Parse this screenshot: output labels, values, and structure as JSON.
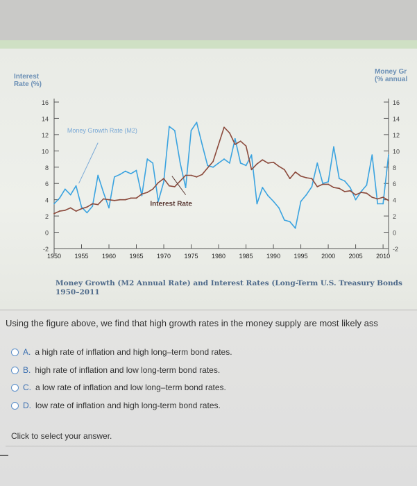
{
  "chart_data": {
    "type": "line",
    "left_axis_title": [
      "Interest",
      "Rate (%)"
    ],
    "right_axis_title": [
      "Money Gr",
      "(% annual"
    ],
    "left_ticks": [
      16,
      14,
      12,
      10,
      8,
      6,
      4,
      2,
      0,
      -2
    ],
    "right_ticks": [
      16,
      14,
      12,
      10,
      8,
      6,
      4,
      2,
      0,
      -2
    ],
    "ylim": [
      -2,
      16
    ],
    "x_ticks": [
      1950,
      1955,
      1960,
      1965,
      1970,
      1975,
      1980,
      1985,
      1990,
      1995,
      2000,
      2005,
      2010
    ],
    "xlim": [
      1950,
      2011
    ],
    "annotations": [
      {
        "text": "Money Growth Rate (M2)",
        "x": 1951.5,
        "y": 12.5
      },
      {
        "text": "Interest Rate",
        "x": 1967,
        "y": 3.6
      }
    ],
    "series": [
      {
        "name": "Money Growth Rate (M2)",
        "color": "#3aa3e0",
        "x": [
          1950,
          1951,
          1952,
          1953,
          1954,
          1955,
          1956,
          1957,
          1958,
          1959,
          1960,
          1961,
          1962,
          1963,
          1964,
          1965,
          1966,
          1967,
          1968,
          1969,
          1970,
          1971,
          1972,
          1973,
          1974,
          1975,
          1976,
          1977,
          1978,
          1979,
          1980,
          1981,
          1982,
          1983,
          1984,
          1985,
          1986,
          1987,
          1988,
          1989,
          1990,
          1991,
          1992,
          1993,
          1994,
          1995,
          1996,
          1997,
          1998,
          1999,
          2000,
          2001,
          2002,
          2003,
          2004,
          2005,
          2006,
          2007,
          2008,
          2009,
          2010,
          2011
        ],
        "y": [
          3.5,
          4.2,
          5.3,
          4.6,
          5.7,
          3.1,
          2.4,
          3.2,
          7.0,
          4.9,
          3.0,
          6.8,
          7.1,
          7.5,
          7.2,
          7.6,
          4.5,
          9.0,
          8.5,
          3.8,
          6.2,
          13.0,
          12.5,
          8.5,
          5.5,
          12.5,
          13.5,
          10.8,
          8.2,
          8.0,
          8.5,
          9.0,
          8.5,
          11.5,
          8.5,
          8.2,
          9.5,
          3.5,
          5.5,
          4.5,
          3.8,
          3.0,
          1.5,
          1.3,
          0.5,
          3.8,
          4.6,
          5.6,
          8.5,
          6.0,
          6.2,
          10.5,
          6.6,
          6.3,
          5.5,
          4.0,
          5.0,
          5.8,
          9.5,
          3.5,
          3.5,
          9.5
        ]
      },
      {
        "name": "Interest Rate",
        "color": "#8b4a3c",
        "x": [
          1950,
          1951,
          1952,
          1953,
          1954,
          1955,
          1956,
          1957,
          1958,
          1959,
          1960,
          1961,
          1962,
          1963,
          1964,
          1965,
          1966,
          1967,
          1968,
          1969,
          1970,
          1971,
          1972,
          1973,
          1974,
          1975,
          1976,
          1977,
          1978,
          1979,
          1980,
          1981,
          1982,
          1983,
          1984,
          1985,
          1986,
          1987,
          1988,
          1989,
          1990,
          1991,
          1992,
          1993,
          1994,
          1995,
          1996,
          1997,
          1998,
          1999,
          2000,
          2001,
          2002,
          2003,
          2004,
          2005,
          2006,
          2007,
          2008,
          2009,
          2010,
          2011
        ],
        "y": [
          2.3,
          2.6,
          2.7,
          3.0,
          2.6,
          2.9,
          3.1,
          3.5,
          3.4,
          4.1,
          4.0,
          3.9,
          4.0,
          4.0,
          4.2,
          4.2,
          4.7,
          4.9,
          5.3,
          6.1,
          6.6,
          5.7,
          5.6,
          6.3,
          7.0,
          7.0,
          6.8,
          7.1,
          7.9,
          8.7,
          10.8,
          12.9,
          12.2,
          10.8,
          11.2,
          10.6,
          7.7,
          8.4,
          8.9,
          8.5,
          8.6,
          8.1,
          7.7,
          6.6,
          7.4,
          6.9,
          6.7,
          6.6,
          5.6,
          5.9,
          5.9,
          5.5,
          5.4,
          5.0,
          5.1,
          4.6,
          4.9,
          4.8,
          4.3,
          4.1,
          4.3,
          3.9
        ]
      }
    ],
    "caption_line1": "Money Growth (M2 Annual Rate) and Interest Rates (Long-Term U.S. Treasury Bonds",
    "caption_line2": "1950–2011"
  },
  "question": {
    "text": "Using the figure above, we find that high growth rates in the money supply are most likely ass",
    "options": [
      {
        "letter": "A.",
        "text": "a high rate of inflation and high long–term bond rates."
      },
      {
        "letter": "B.",
        "text": "high rate of inflation and low long-term bond rates."
      },
      {
        "letter": "C.",
        "text": "a low rate of inflation and low long–term bond rates."
      },
      {
        "letter": "D.",
        "text": "low rate of inflation and high long-term bond rates."
      }
    ],
    "hint": "Click to select your answer."
  }
}
